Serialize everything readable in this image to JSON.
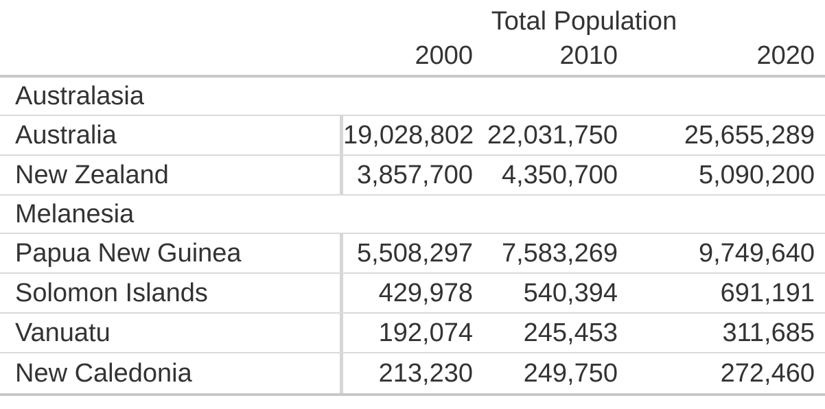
{
  "table": {
    "title": "Total Population",
    "year_headers": [
      "2000",
      "2010",
      "2020"
    ],
    "sections": [
      {
        "label": "Australasia",
        "rows": [
          {
            "name": "Australia",
            "values": [
              "19,028,802",
              "22,031,750",
              "25,655,289"
            ]
          },
          {
            "name": "New Zealand",
            "values": [
              "3,857,700",
              "4,350,700",
              "5,090,200"
            ]
          }
        ]
      },
      {
        "label": "Melanesia",
        "rows": [
          {
            "name": "Papua New Guinea",
            "values": [
              "5,508,297",
              "7,583,269",
              "9,749,640"
            ]
          },
          {
            "name": "Solomon Islands",
            "values": [
              "429,978",
              "540,394",
              "691,191"
            ]
          },
          {
            "name": "Vanuatu",
            "values": [
              "192,074",
              "245,453",
              "311,685"
            ]
          },
          {
            "name": "New Caledonia",
            "values": [
              "213,230",
              "249,750",
              "272,460"
            ]
          }
        ]
      }
    ]
  },
  "chart_data": {
    "type": "table",
    "title": "Total Population",
    "columns": [
      "2000",
      "2010",
      "2020"
    ],
    "groups": [
      {
        "name": "Australasia",
        "rows": [
          {
            "name": "Australia",
            "values": [
              19028802,
              22031750,
              25655289
            ]
          },
          {
            "name": "New Zealand",
            "values": [
              3857700,
              4350700,
              5090200
            ]
          }
        ]
      },
      {
        "name": "Melanesia",
        "rows": [
          {
            "name": "Papua New Guinea",
            "values": [
              5508297,
              7583269,
              9749640
            ]
          },
          {
            "name": "Solomon Islands",
            "values": [
              429978,
              540394,
              691191
            ]
          },
          {
            "name": "Vanuatu",
            "values": [
              192074,
              245453,
              311685
            ]
          },
          {
            "name": "New Caledonia",
            "values": [
              213230,
              249750,
              272460
            ]
          }
        ]
      }
    ]
  },
  "colors": {
    "text": "#333333",
    "row_separator": "#dadada",
    "heavy_rule": "#c8c8c8",
    "vertical_rule": "#d6d6d6",
    "background": "#ffffff"
  }
}
